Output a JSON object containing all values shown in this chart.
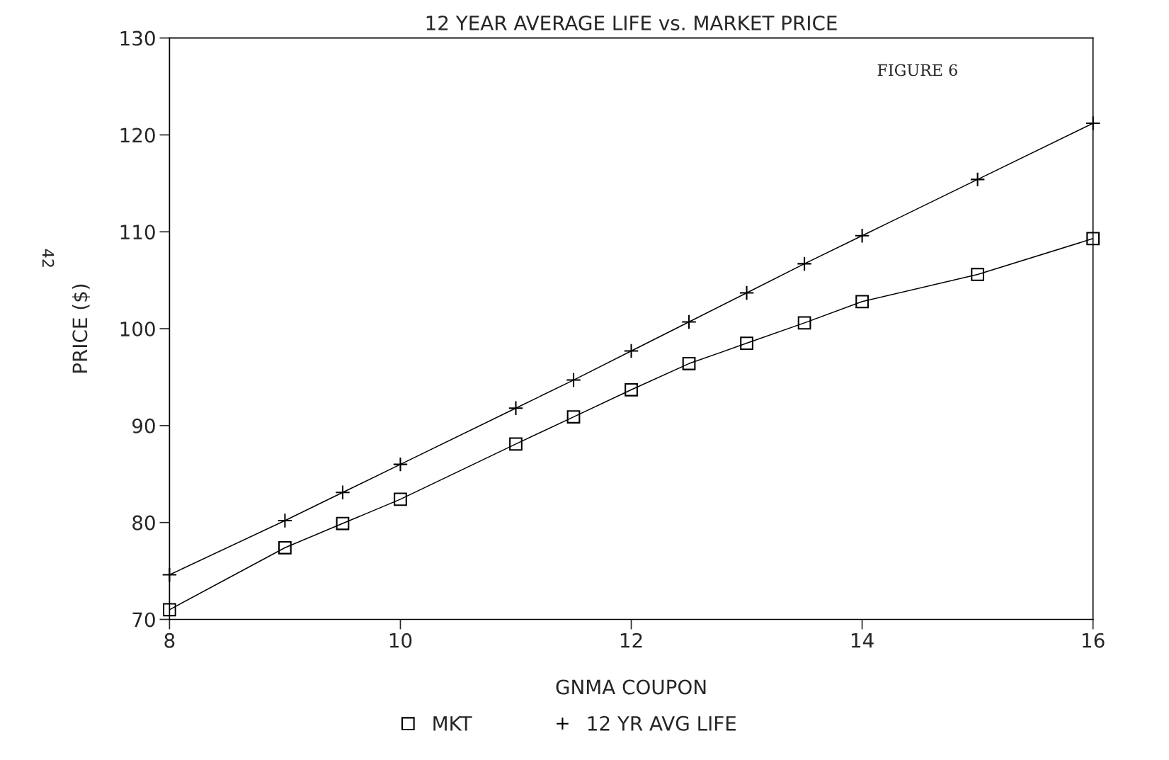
{
  "chart_data": {
    "type": "line",
    "title": "12 YEAR AVERAGE LIFE vs. MARKET PRICE",
    "xlabel": "GNMA COUPON",
    "ylabel": "PRICE ($)",
    "x": [
      8,
      9,
      9.5,
      10,
      11,
      11.5,
      12,
      12.5,
      13,
      13.5,
      14,
      15,
      16
    ],
    "series": [
      {
        "name": "MKT",
        "color": "#000000",
        "marker": "square",
        "values": [
          71,
          77.4,
          79.9,
          82.4,
          88.1,
          90.9,
          93.7,
          96.4,
          98.5,
          100.6,
          102.8,
          105.6,
          109.3
        ]
      },
      {
        "name": "12 YR AVG LIFE",
        "color": "#000000",
        "marker": "cross",
        "values": [
          74.6,
          80.2,
          83.1,
          86.0,
          91.8,
          94.7,
          97.7,
          100.7,
          103.7,
          106.7,
          109.6,
          115.4,
          121.2
        ]
      }
    ],
    "xlim": [
      8,
      16
    ],
    "xticks": [
      8,
      10,
      12,
      14,
      16
    ],
    "ylim": [
      70,
      130
    ],
    "yticks": [
      70,
      80,
      90,
      100,
      110,
      120,
      130
    ],
    "grid": false,
    "legend": "bottom",
    "line_style": "solid",
    "annotations": [
      "FIGURE 6",
      "42"
    ]
  }
}
